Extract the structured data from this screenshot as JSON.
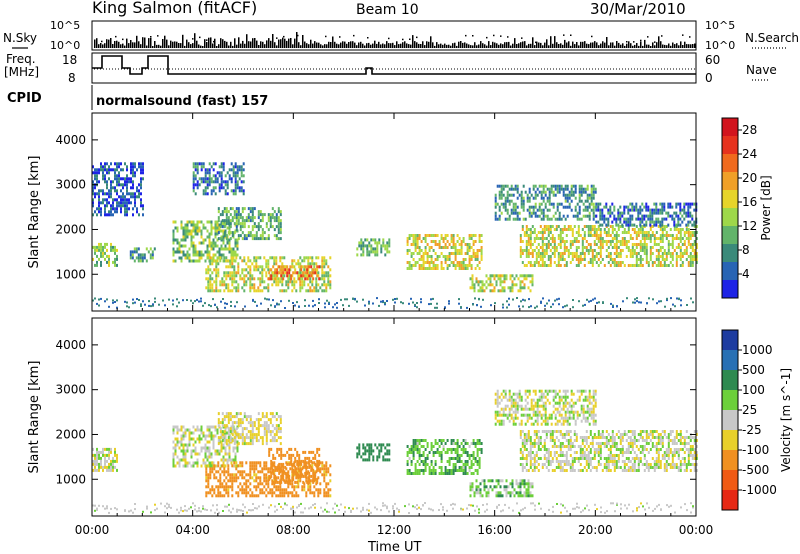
{
  "header": {
    "station": "King Salmon (fitACF)",
    "beam": "Beam 10",
    "date": "30/Mar/2010"
  },
  "strip": {
    "nsky_label": "N.Sky",
    "nsky_ticks": [
      "10^5",
      "10^0"
    ],
    "nsearch_label": "N.Search",
    "nsearch_ticks": [
      "10^5",
      "10^0"
    ],
    "freq_label_1": "Freq.",
    "freq_label_2": "[MHz]",
    "freq_ticks": [
      "18",
      "8"
    ],
    "nave_label": "Nave",
    "nave_ticks": [
      "60",
      "0"
    ],
    "cpid_label": "CPID",
    "cpid_value": "normalsound (fast) 157"
  },
  "chart_data": [
    {
      "type": "heatmap",
      "name": "power",
      "xlabel": "",
      "ylabel": "Slant Range [km]",
      "xlim": [
        0,
        24
      ],
      "ylim": [
        180,
        4600
      ],
      "yticks": [
        1000,
        2000,
        3000,
        4000
      ],
      "xticks": [
        0,
        4,
        8,
        12,
        16,
        20,
        24
      ],
      "colorbar": {
        "label": "Power [dB]",
        "tick_values": [
          4,
          8,
          12,
          16,
          20,
          24,
          28
        ],
        "tick_labels": [
          "4",
          "8",
          "12",
          "16",
          "20",
          "24",
          "28"
        ],
        "range": [
          0,
          30
        ],
        "colors": [
          "#1e24e6",
          "#2864b4",
          "#3a8a7a",
          "#62b46a",
          "#9ed84a",
          "#e6d42a",
          "#f0a028",
          "#f06a1e",
          "#e6321e",
          "#d2141e"
        ]
      },
      "regions": [
        {
          "t": [
            0.0,
            1.0
          ],
          "r": [
            1200,
            1700
          ],
          "v": 12
        },
        {
          "t": [
            1.5,
            2.5
          ],
          "r": [
            1300,
            1600
          ],
          "v": 8
        },
        {
          "t": [
            3.2,
            5.8
          ],
          "r": [
            1300,
            2200
          ],
          "v": 12
        },
        {
          "t": [
            5.0,
            7.5
          ],
          "r": [
            1800,
            2500
          ],
          "v": 10
        },
        {
          "t": [
            4.0,
            6.0
          ],
          "r": [
            2800,
            3500
          ],
          "v": 6
        },
        {
          "t": [
            4.5,
            9.5
          ],
          "r": [
            600,
            1400
          ],
          "v": 14
        },
        {
          "t": [
            7.0,
            9.0
          ],
          "r": [
            900,
            1200
          ],
          "v": 22
        },
        {
          "t": [
            0.0,
            2.0
          ],
          "r": [
            2300,
            3500
          ],
          "v": 4
        },
        {
          "t": [
            10.5,
            11.8
          ],
          "r": [
            1400,
            1800
          ],
          "v": 10
        },
        {
          "t": [
            12.5,
            15.5
          ],
          "r": [
            1100,
            1900
          ],
          "v": 16
        },
        {
          "t": [
            15.0,
            17.5
          ],
          "r": [
            600,
            1000
          ],
          "v": 14
        },
        {
          "t": [
            17.0,
            24.0
          ],
          "r": [
            1200,
            2100
          ],
          "v": 15
        },
        {
          "t": [
            16.0,
            20.0
          ],
          "r": [
            2200,
            3000
          ],
          "v": 8
        },
        {
          "t": [
            20.0,
            24.0
          ],
          "r": [
            2100,
            2600
          ],
          "v": 6
        }
      ]
    },
    {
      "type": "heatmap",
      "name": "velocity",
      "xlabel": "Time UT",
      "ylabel": "Slant Range [km]",
      "xlim": [
        0,
        24
      ],
      "ylim": [
        180,
        4600
      ],
      "yticks": [
        1000,
        2000,
        3000,
        4000
      ],
      "xticks": [
        0,
        4,
        8,
        12,
        16,
        20,
        24
      ],
      "xtick_labels": [
        "00:00",
        "04:00",
        "08:00",
        "12:00",
        "16:00",
        "20:00",
        "00:00"
      ],
      "colorbar": {
        "label": "Velocity [m s^-1]",
        "tick_labels": [
          "1000",
          "500",
          "100",
          "25",
          "-25",
          "-100",
          "-500",
          "-1000"
        ],
        "colors": [
          "#1e3ca0",
          "#2870b4",
          "#2e8a50",
          "#6ccf3a",
          "#c8c8c8",
          "#e8d02a",
          "#f09020",
          "#f05a14",
          "#e62814"
        ]
      },
      "regions": [
        {
          "t": [
            0.0,
            1.0
          ],
          "r": [
            1200,
            1700
          ],
          "v": 0
        },
        {
          "t": [
            3.2,
            5.8
          ],
          "r": [
            1300,
            2200
          ],
          "v": 0
        },
        {
          "t": [
            5.0,
            7.5
          ],
          "r": [
            1800,
            2500
          ],
          "v": -30
        },
        {
          "t": [
            4.5,
            9.5
          ],
          "r": [
            600,
            1400
          ],
          "v": -150
        },
        {
          "t": [
            7.0,
            9.0
          ],
          "r": [
            900,
            1700
          ],
          "v": -300
        },
        {
          "t": [
            10.5,
            11.8
          ],
          "r": [
            1400,
            1800
          ],
          "v": 200
        },
        {
          "t": [
            12.5,
            15.5
          ],
          "r": [
            1100,
            1900
          ],
          "v": 80
        },
        {
          "t": [
            15.0,
            17.5
          ],
          "r": [
            600,
            1000
          ],
          "v": 60
        },
        {
          "t": [
            17.0,
            24.0
          ],
          "r": [
            1200,
            2100
          ],
          "v": 0
        },
        {
          "t": [
            16.0,
            20.0
          ],
          "r": [
            2200,
            3000
          ],
          "v": 0
        }
      ]
    }
  ]
}
